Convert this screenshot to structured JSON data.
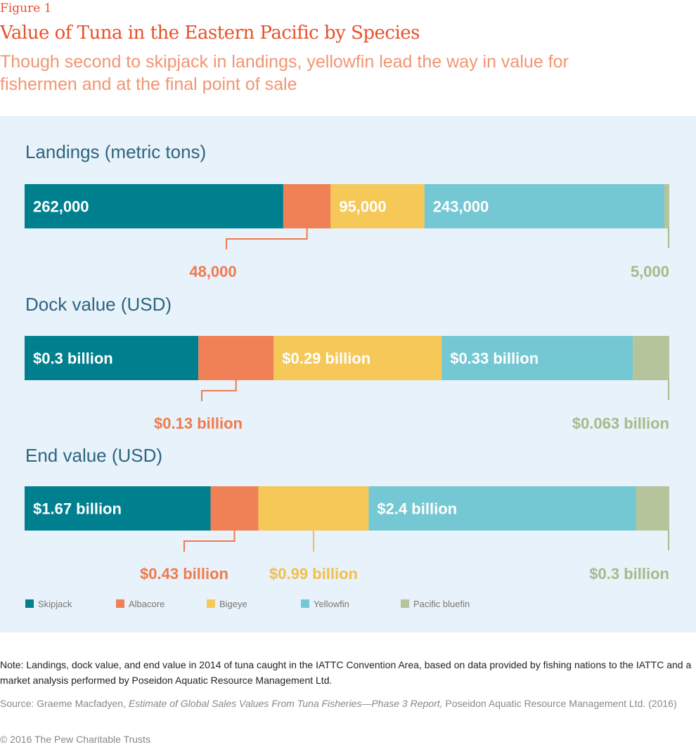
{
  "header": {
    "figure_label": "Figure 1",
    "title": "Value of Tuna in the Eastern Pacific by Species",
    "subtitle": "Though second to skipjack in landings, yellowfin lead the way in value for fishermen and at the final point of sale"
  },
  "chart_data": {
    "type": "bar",
    "orientation": "horizontal-stacked-100",
    "legend_position": "bottom-left",
    "grid": false,
    "series_colors": {
      "Skipjack": "#00808f",
      "Albacore": "#f08055",
      "Bigeye": "#f5c858",
      "Yellowfin": "#74c8d4",
      "Pacific bluefin": "#b5c49a"
    },
    "legend": [
      "Skipjack",
      "Albacore",
      "Bigeye",
      "Yellowfin",
      "Pacific bluefin"
    ],
    "charts": [
      {
        "title": "Landings (metric tons)",
        "values": [
          262000,
          48000,
          95000,
          243000,
          5000
        ],
        "labels": [
          "262,000",
          "48,000",
          "95,000",
          "243,000",
          "5,000"
        ],
        "label_position": [
          "inside",
          "below",
          "inside",
          "inside",
          "below"
        ]
      },
      {
        "title": "Dock value (USD)",
        "values": [
          0.3,
          0.13,
          0.29,
          0.33,
          0.063
        ],
        "labels": [
          "$0.3 billion",
          "$0.13 billion",
          "$0.29 billion",
          "$0.33 billion",
          "$0.063 billion"
        ],
        "label_position": [
          "inside",
          "below",
          "inside",
          "inside",
          "below"
        ]
      },
      {
        "title": "End value (USD)",
        "values": [
          1.67,
          0.43,
          0.99,
          2.4,
          0.3
        ],
        "labels": [
          "$1.67 billion",
          "$0.43 billion",
          "$0.99 billion",
          "$2.4 billion",
          "$0.3 billion"
        ],
        "label_position": [
          "inside",
          "below",
          "below",
          "inside",
          "below"
        ]
      }
    ]
  },
  "footer": {
    "note": "Note: Landings, dock value, and end value in 2014 of tuna caught in the IATTC Convention Area, based on data provided by fishing nations to the IATTC and a market analysis performed by Poseidon Aquatic Resource Management Ltd.",
    "source_prefix": "Source: Graeme Macfadyen, ",
    "source_title": "Estimate of Global Sales Values From Tuna Fisheries—Phase 3 Report,",
    "source_suffix": " Poseidon Aquatic Resource Management Ltd. (2016)",
    "copyright": "© 2016 The Pew Charitable Trusts"
  }
}
